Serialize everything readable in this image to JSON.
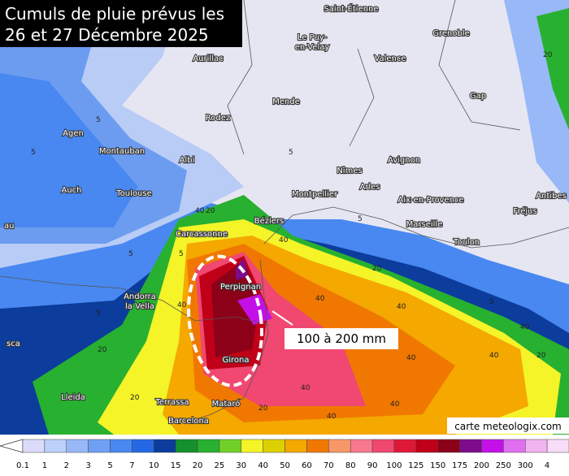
{
  "header": {
    "title_lines": [
      "Cumuls de pluie prévus les",
      "26 et 27 Décembre 2025"
    ]
  },
  "annotation": "100 à 200 mm",
  "credit": "carte meteologix.com",
  "cities": [
    "Saint-Étienne",
    "Grenoble",
    "Le Puy-",
    "en-Velay",
    "Aurillac",
    "Valence",
    "Mende",
    "Gap",
    "Rodez",
    "Agen",
    "Montauban",
    "Albi",
    "Nîmes",
    "Avignon",
    "Auch",
    "Toulouse",
    "Montpellier",
    "Arles",
    "Aix-en-Provence",
    "Antibes",
    "Fréjus",
    "Béziers",
    "Marseille",
    "Carcassonne",
    "Toulon",
    "Perpignan",
    "Andorra",
    "la Vella",
    "Girona",
    "Lleida",
    "Terrassa",
    "Mataró",
    "Barcelona",
    "au",
    "sca"
  ],
  "contour_labels": [
    "5",
    "5",
    "5",
    "5",
    "5",
    "5",
    "5",
    "5",
    "20",
    "20",
    "20",
    "20",
    "40",
    "40",
    "40",
    "40",
    "40",
    "40",
    "40",
    "40",
    "40",
    "40",
    "40",
    "20",
    "20",
    "20"
  ],
  "legend": {
    "labels": [
      "0.1",
      "1",
      "2",
      "3",
      "5",
      "7",
      "10",
      "15",
      "20",
      "25",
      "30",
      "40",
      "50",
      "60",
      "70",
      "80",
      "90",
      "100",
      "125",
      "150",
      "175",
      "200",
      "250",
      "300",
      "4"
    ],
    "colors": [
      "#dcdcfa",
      "#bcd0fa",
      "#98b8f8",
      "#70a0f4",
      "#4888f0",
      "#2468e4",
      "#0c3c9c",
      "#14902c",
      "#28b030",
      "#70d028",
      "#f4f428",
      "#dcd000",
      "#f4a800",
      "#f07800",
      "#f89868",
      "#f87890",
      "#f04870",
      "#e01838",
      "#c00018",
      "#8c0018",
      "#7c0c8c",
      "#c410e8",
      "#e070f0",
      "#f0b4f0",
      "#f8dcf8"
    ]
  }
}
